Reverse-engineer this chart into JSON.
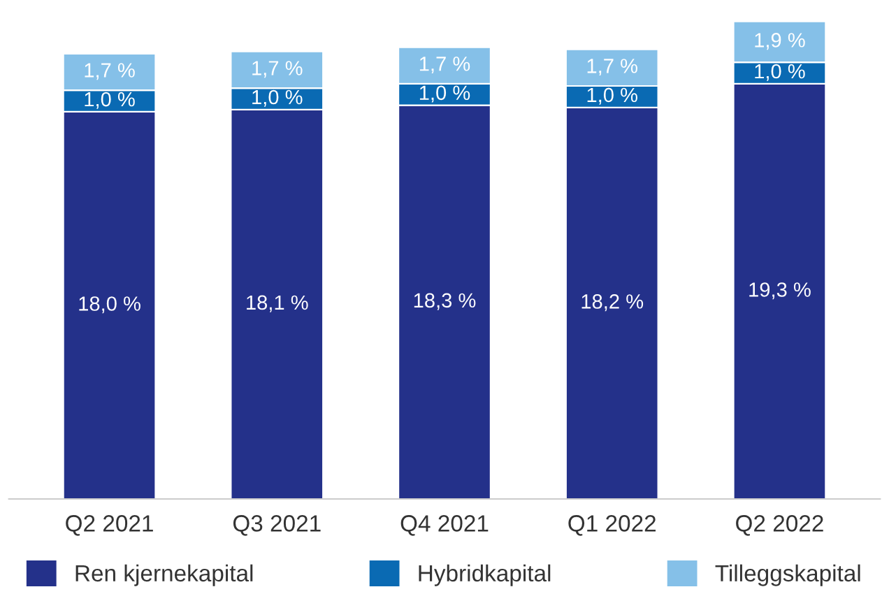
{
  "chart_data": {
    "type": "bar",
    "stacked": true,
    "categories": [
      "Q2 2021",
      "Q3 2021",
      "Q4 2021",
      "Q1 2022",
      "Q2 2022"
    ],
    "series": [
      {
        "name": "Ren kjernekapital",
        "color": "#24318a",
        "values": [
          18.0,
          18.1,
          18.3,
          18.2,
          19.3
        ],
        "value_labels": [
          "18,0 %",
          "18,1 %",
          "18,3 %",
          "18,2 %",
          "19,3 %"
        ]
      },
      {
        "name": "Hybridkapital",
        "color": "#0a6ab3",
        "values": [
          1.0,
          1.0,
          1.0,
          1.0,
          1.0
        ],
        "value_labels": [
          "1,0 %",
          "1,0 %",
          "1,0 %",
          "1,0 %",
          "1,0 %"
        ]
      },
      {
        "name": "Tilleggskapital",
        "color": "#85c0e8",
        "values": [
          1.7,
          1.7,
          1.7,
          1.7,
          1.9
        ],
        "value_labels": [
          "1,7 %",
          "1,7 %",
          "1,7 %",
          "1,7 %",
          "1,9 %"
        ]
      }
    ],
    "legend": "bottom",
    "grid": false
  }
}
